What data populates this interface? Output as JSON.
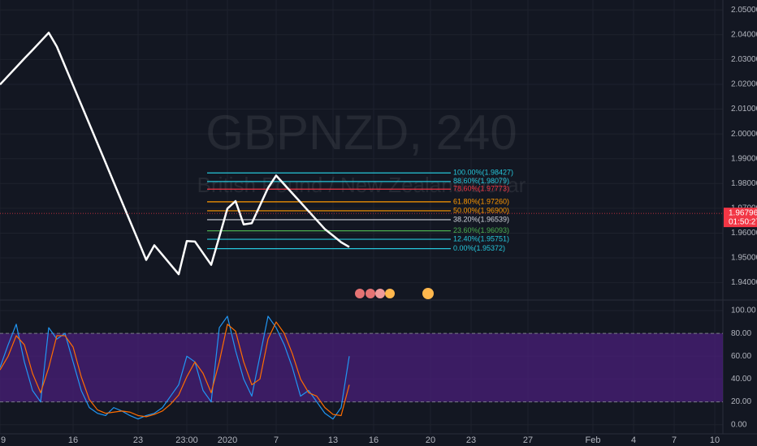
{
  "chart_data": [
    {
      "type": "line",
      "title": "GBPNZD, 240",
      "subtitle": "British Pound / New Zealand Dollar",
      "ylim": [
        1.933,
        2.054
      ],
      "yticks": [
        {
          "value": 1.94,
          "label": "1.94000"
        },
        {
          "value": 1.95,
          "label": "1.95000"
        },
        {
          "value": 1.96,
          "label": "1.96000"
        },
        {
          "value": 1.97,
          "label": "1.97000"
        },
        {
          "value": 1.98,
          "label": "1.98000"
        },
        {
          "value": 1.99,
          "label": "1.99000"
        },
        {
          "value": 2.0,
          "label": "2.00000"
        },
        {
          "value": 2.01,
          "label": "2.01000"
        },
        {
          "value": 2.02,
          "label": "2.02000"
        },
        {
          "value": 2.03,
          "label": "2.03000"
        },
        {
          "value": 2.04,
          "label": "2.04000"
        },
        {
          "value": 2.05,
          "label": "2.05000"
        }
      ],
      "grid": true,
      "series": [
        {
          "color": "#ffffff",
          "values": [
            2.0199,
            2.0234,
            2.0269,
            2.0304,
            2.0338,
            2.0373,
            2.0408,
            2.0352,
            2.0274,
            2.0196,
            2.0118,
            2.004,
            1.9962,
            1.9884,
            1.9805,
            1.9727,
            1.9649,
            1.9571,
            1.9492,
            1.9551,
            1.9512,
            1.9473,
            1.9434,
            1.9568,
            1.9566,
            1.9519,
            1.9472,
            1.9585,
            1.9699,
            1.9729,
            1.9635,
            1.964,
            1.9711,
            1.9782,
            1.9832,
            1.9796,
            1.976,
            1.9724,
            1.9688,
            1.9652,
            1.9616,
            1.959,
            1.9563,
            1.9544,
            null,
            null,
            null,
            null,
            null,
            null,
            null,
            null,
            null,
            null,
            null,
            null,
            null,
            null,
            null,
            null,
            null,
            null,
            null,
            null,
            null,
            null,
            null,
            null,
            null,
            null,
            null,
            null,
            null,
            null,
            null,
            null,
            null,
            null,
            null,
            null,
            null,
            null,
            null,
            null,
            null,
            null,
            null,
            null,
            null
          ]
        }
      ],
      "fib_levels": [
        {
          "label": "100.00%(1.98427)",
          "value": 1.98427,
          "color": "#26c6da"
        },
        {
          "label": "88.60%(1.98079)",
          "value": 1.98079,
          "color": "#26c6da"
        },
        {
          "label": "78.60%(1.97773)",
          "value": 1.97773,
          "color": "#f23645"
        },
        {
          "label": "61.80%(1.97260)",
          "value": 1.9726,
          "color": "#ff9800"
        },
        {
          "label": "50.00%(1.96900)",
          "value": 1.969,
          "color": "#ff9800"
        },
        {
          "label": "38.20%(1.96539)",
          "value": 1.96539,
          "color": "#d1d4dc"
        },
        {
          "label": "23.60%(1.96093)",
          "value": 1.96093,
          "color": "#4caf50"
        },
        {
          "label": "12.40%(1.95751)",
          "value": 1.95751,
          "color": "#26c6da"
        },
        {
          "label": "0.00%(1.95372)",
          "value": 1.95372,
          "color": "#26c6da"
        }
      ],
      "last_price": 1.96796,
      "countdown": "01:50:27",
      "last_price_color": "#f23645"
    },
    {
      "type": "line",
      "ylim": [
        -8,
        108.5
      ],
      "yticks": [
        {
          "value": 0,
          "label": "0.00"
        },
        {
          "value": 20,
          "label": "20.00"
        },
        {
          "value": 40,
          "label": "40.00"
        },
        {
          "value": 60,
          "label": "60.00"
        },
        {
          "value": 80,
          "label": "80.00"
        },
        {
          "value": 100,
          "label": "100.00"
        }
      ],
      "band": [
        20,
        80
      ],
      "band_color": "#4a1f7a",
      "categories": [
        "9",
        null,
        null,
        null,
        null,
        null,
        null,
        null,
        null,
        "16",
        null,
        null,
        null,
        null,
        null,
        null,
        null,
        "23",
        null,
        null,
        null,
        null,
        null,
        "23:00",
        null,
        null,
        null,
        null,
        "2020",
        null,
        null,
        null,
        null,
        null,
        "7",
        null,
        null,
        null,
        null,
        null,
        null,
        "13",
        null,
        null,
        null,
        null,
        "16",
        null,
        null,
        null,
        null,
        null,
        null,
        "20",
        null,
        null,
        null,
        null,
        "23",
        null,
        null,
        null,
        null,
        null,
        null,
        "27",
        null,
        null,
        null,
        null,
        null,
        null,
        null,
        "Feb",
        null,
        null,
        null,
        null,
        "4",
        null,
        null,
        null,
        null,
        "7",
        null,
        null,
        null,
        null,
        "10"
      ],
      "series": [
        {
          "color": "#2196f3",
          "values": [
            50,
            70,
            88,
            55,
            30,
            20,
            85,
            75,
            80,
            55,
            30,
            15,
            10,
            8,
            15,
            12,
            8,
            5,
            8,
            10,
            15,
            25,
            35,
            60,
            55,
            30,
            20,
            85,
            95,
            65,
            40,
            25,
            60,
            95,
            85,
            70,
            50,
            25,
            30,
            20,
            10,
            5,
            15,
            60,
            null,
            null,
            null,
            null,
            null,
            null,
            null,
            null,
            null,
            null,
            null,
            null,
            null,
            null,
            null,
            null,
            null,
            null,
            null,
            null,
            null,
            null,
            null,
            null,
            null,
            null,
            null,
            null,
            null,
            null,
            null,
            null,
            null,
            null,
            null,
            null,
            null,
            null,
            null,
            null,
            null,
            null,
            null,
            null,
            null
          ]
        },
        {
          "color": "#ff6d00",
          "values": [
            48,
            60,
            78,
            70,
            45,
            28,
            50,
            78,
            78,
            68,
            42,
            22,
            13,
            10,
            11,
            12,
            11,
            8,
            7,
            9,
            12,
            18,
            26,
            42,
            55,
            45,
            28,
            55,
            88,
            82,
            55,
            35,
            40,
            75,
            90,
            80,
            62,
            40,
            28,
            25,
            15,
            9,
            8,
            35,
            null,
            null,
            null,
            null,
            null,
            null,
            null,
            null,
            null,
            null,
            null,
            null,
            null,
            null,
            null,
            null,
            null,
            null,
            null,
            null,
            null,
            null,
            null,
            null,
            null,
            null,
            null,
            null,
            null,
            null,
            null,
            null,
            null,
            null,
            null,
            null,
            null,
            null,
            null,
            null,
            null,
            null,
            null,
            null,
            null
          ]
        }
      ]
    }
  ]
}
